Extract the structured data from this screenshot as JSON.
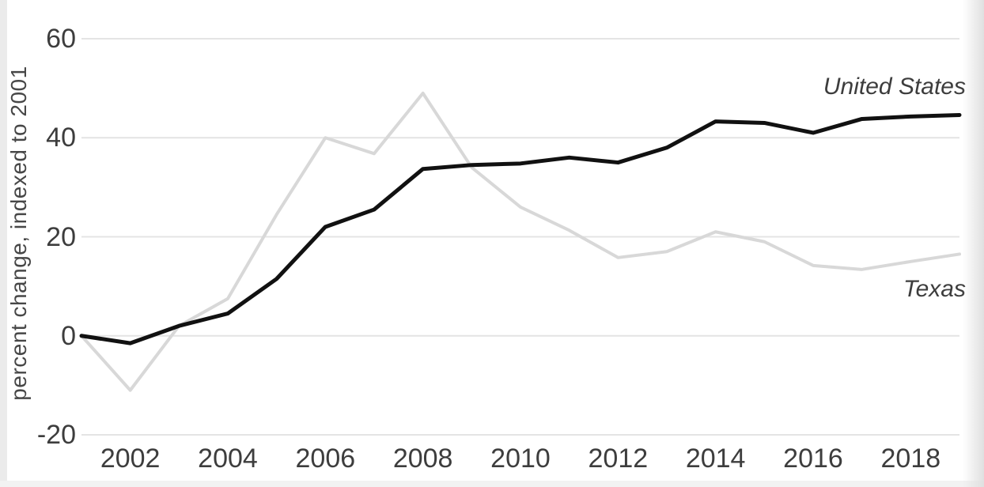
{
  "chart_data": {
    "type": "line",
    "title": "",
    "ylabel": "percent change, indexed to 2001",
    "xlabel": "",
    "x": [
      2001,
      2002,
      2003,
      2004,
      2005,
      2006,
      2007,
      2008,
      2009,
      2010,
      2011,
      2012,
      2013,
      2014,
      2015,
      2016,
      2017,
      2018,
      2019
    ],
    "series": [
      {
        "name": "United States",
        "color": "#111111",
        "stroke_width": 5,
        "values": [
          0,
          -1.5,
          2,
          4.5,
          11.5,
          22,
          25.5,
          33.7,
          34.5,
          34.8,
          36,
          35,
          38,
          43.3,
          43,
          41,
          43.8,
          44.3,
          44.6
        ]
      },
      {
        "name": "Texas",
        "color": "#d8d8d8",
        "stroke_width": 4,
        "values": [
          0,
          -11,
          2,
          7.5,
          24.5,
          40,
          36.8,
          49,
          34,
          26,
          21.3,
          15.8,
          17,
          21,
          19,
          14.2,
          13.4,
          15,
          16.5
        ]
      }
    ],
    "ylim": [
      -20,
      60
    ],
    "yticks": [
      60,
      40,
      20,
      0,
      -20
    ],
    "xticks": [
      2002,
      2004,
      2006,
      2008,
      2010,
      2012,
      2014,
      2016,
      2018
    ],
    "grid": "horizontal",
    "gridline_color": "#e4e4e4",
    "axis_text_color": "#3d3d3d",
    "background_color": "#ffffff",
    "legend_position": "end-of-line labels, right side",
    "annotations": [
      {
        "text": "United States",
        "year": 2019,
        "value": 50
      },
      {
        "text": "Texas",
        "year": 2019,
        "value": 9
      }
    ]
  }
}
